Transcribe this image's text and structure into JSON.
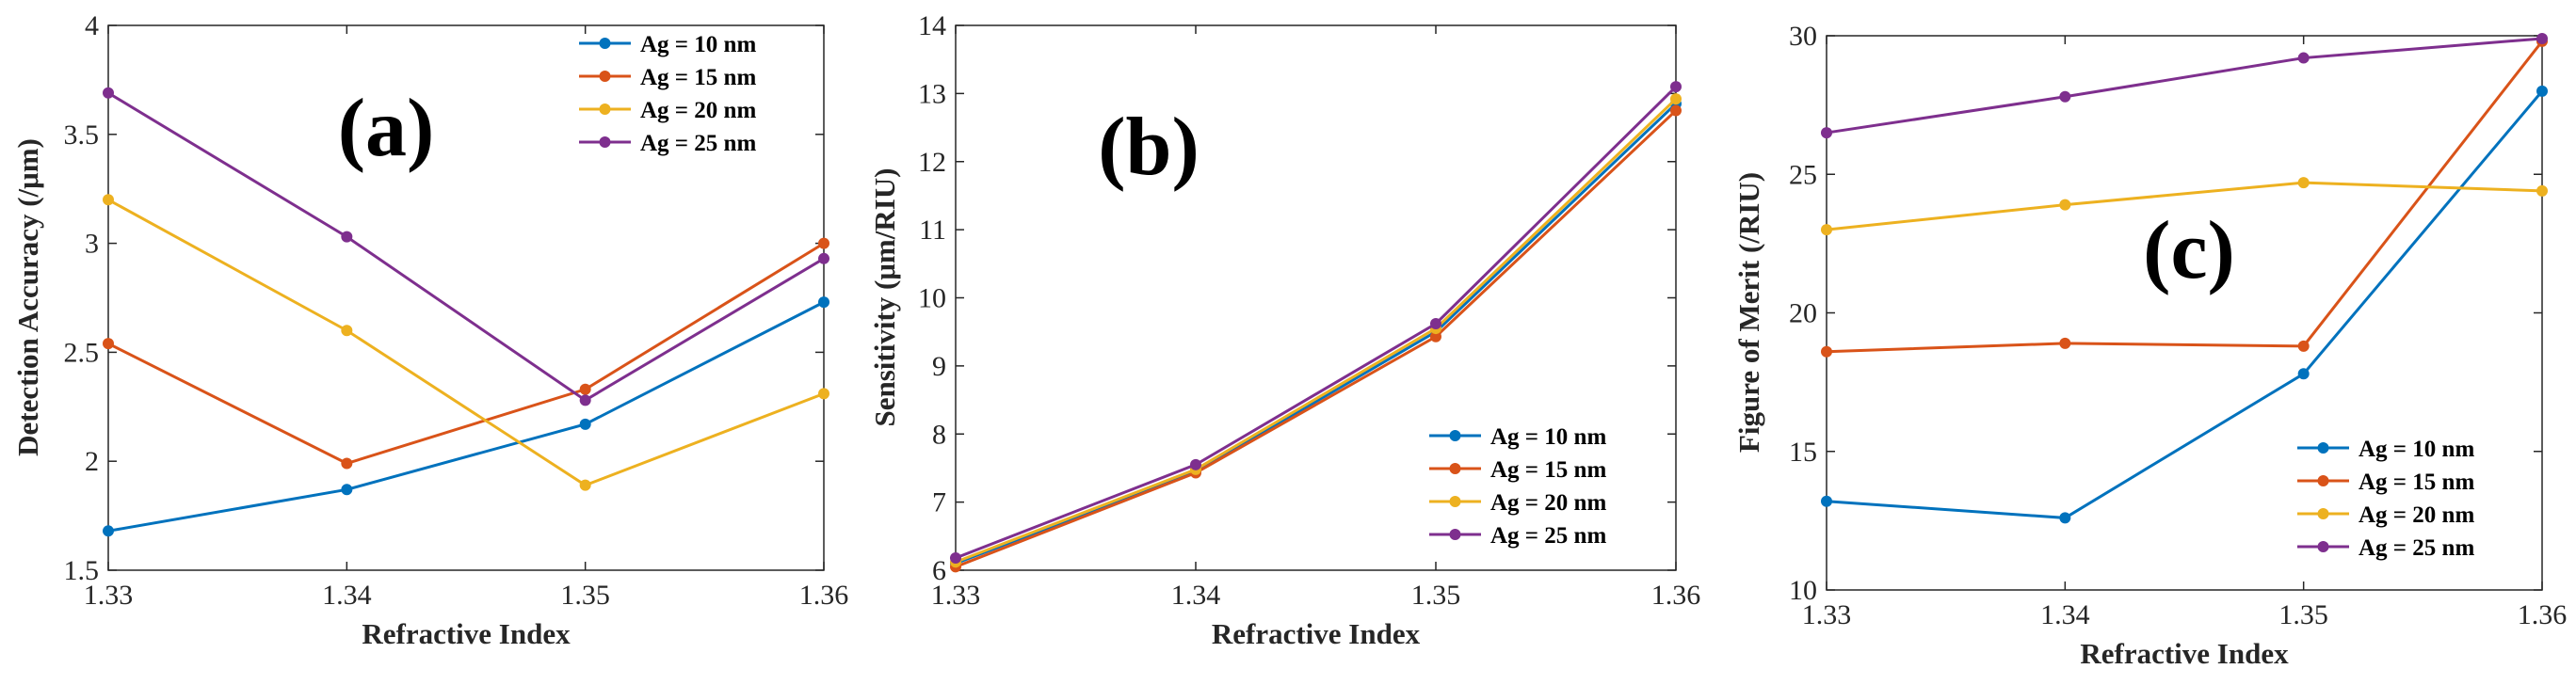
{
  "chart_data": [
    {
      "type": "line",
      "panel_label": "(a)",
      "xlabel": "Refractive Index",
      "ylabel": "Detection Accuracy (/μm)",
      "x": [
        1.33,
        1.34,
        1.35,
        1.36
      ],
      "x_tick_labels": [
        "1.33",
        "1.34",
        "1.35",
        "1.36"
      ],
      "xlim": [
        1.33,
        1.36
      ],
      "ylim": [
        1.5,
        4
      ],
      "y_ticks": [
        1.5,
        2,
        2.5,
        3,
        3.5,
        4
      ],
      "y_tick_labels": [
        "1.5",
        "2",
        "2.5",
        "3",
        "3.5",
        "4"
      ],
      "legend_position": "top-right",
      "series": [
        {
          "name": "Ag = 10 nm",
          "values": [
            1.68,
            1.87,
            2.17,
            2.73
          ]
        },
        {
          "name": "Ag = 15 nm",
          "values": [
            2.54,
            1.99,
            2.33,
            3.0
          ]
        },
        {
          "name": "Ag = 20 nm",
          "values": [
            3.2,
            2.6,
            1.89,
            2.31
          ]
        },
        {
          "name": "Ag = 25 nm",
          "values": [
            3.69,
            3.03,
            2.28,
            2.93
          ]
        }
      ]
    },
    {
      "type": "line",
      "panel_label": "(b)",
      "xlabel": "Refractive Index",
      "ylabel": "Sensitivity (μm/RIU)",
      "x": [
        1.33,
        1.34,
        1.35,
        1.36
      ],
      "x_tick_labels": [
        "1.33",
        "1.34",
        "1.35",
        "1.36"
      ],
      "xlim": [
        1.33,
        1.36
      ],
      "ylim": [
        6,
        14
      ],
      "y_ticks": [
        6,
        7,
        8,
        9,
        10,
        11,
        12,
        13,
        14
      ],
      "y_tick_labels": [
        "6",
        "7",
        "8",
        "9",
        "10",
        "11",
        "12",
        "13",
        "14"
      ],
      "legend_position": "bottom-right",
      "series": [
        {
          "name": "Ag = 10 nm",
          "values": [
            6.1,
            7.45,
            9.5,
            12.85
          ]
        },
        {
          "name": "Ag = 15 nm",
          "values": [
            6.05,
            7.43,
            9.43,
            12.75
          ]
        },
        {
          "name": "Ag = 20 nm",
          "values": [
            6.12,
            7.48,
            9.55,
            12.92
          ]
        },
        {
          "name": "Ag = 25 nm",
          "values": [
            6.18,
            7.55,
            9.62,
            13.1
          ]
        }
      ]
    },
    {
      "type": "line",
      "panel_label": "(c)",
      "xlabel": "Refractive Index",
      "ylabel": "Figure of Merit (/RIU)",
      "x": [
        1.33,
        1.34,
        1.35,
        1.36
      ],
      "x_tick_labels": [
        "1.33",
        "1.34",
        "1.35",
        "1.36"
      ],
      "xlim": [
        1.33,
        1.36
      ],
      "ylim": [
        10,
        30
      ],
      "y_ticks": [
        10,
        15,
        20,
        25,
        30
      ],
      "y_tick_labels": [
        "10",
        "15",
        "20",
        "25",
        "30"
      ],
      "legend_position": "bottom-right",
      "series": [
        {
          "name": "Ag = 10 nm",
          "values": [
            13.2,
            12.6,
            17.8,
            28.0
          ]
        },
        {
          "name": "Ag = 15 nm",
          "values": [
            18.6,
            18.9,
            18.8,
            29.8
          ]
        },
        {
          "name": "Ag = 20 nm",
          "values": [
            23.0,
            23.9,
            24.7,
            24.4
          ]
        },
        {
          "name": "Ag = 25 nm",
          "values": [
            26.5,
            27.8,
            29.2,
            29.9
          ]
        }
      ]
    }
  ],
  "series_colors": [
    "#0072BD",
    "#D95319",
    "#EDB120",
    "#7E2F8E"
  ]
}
